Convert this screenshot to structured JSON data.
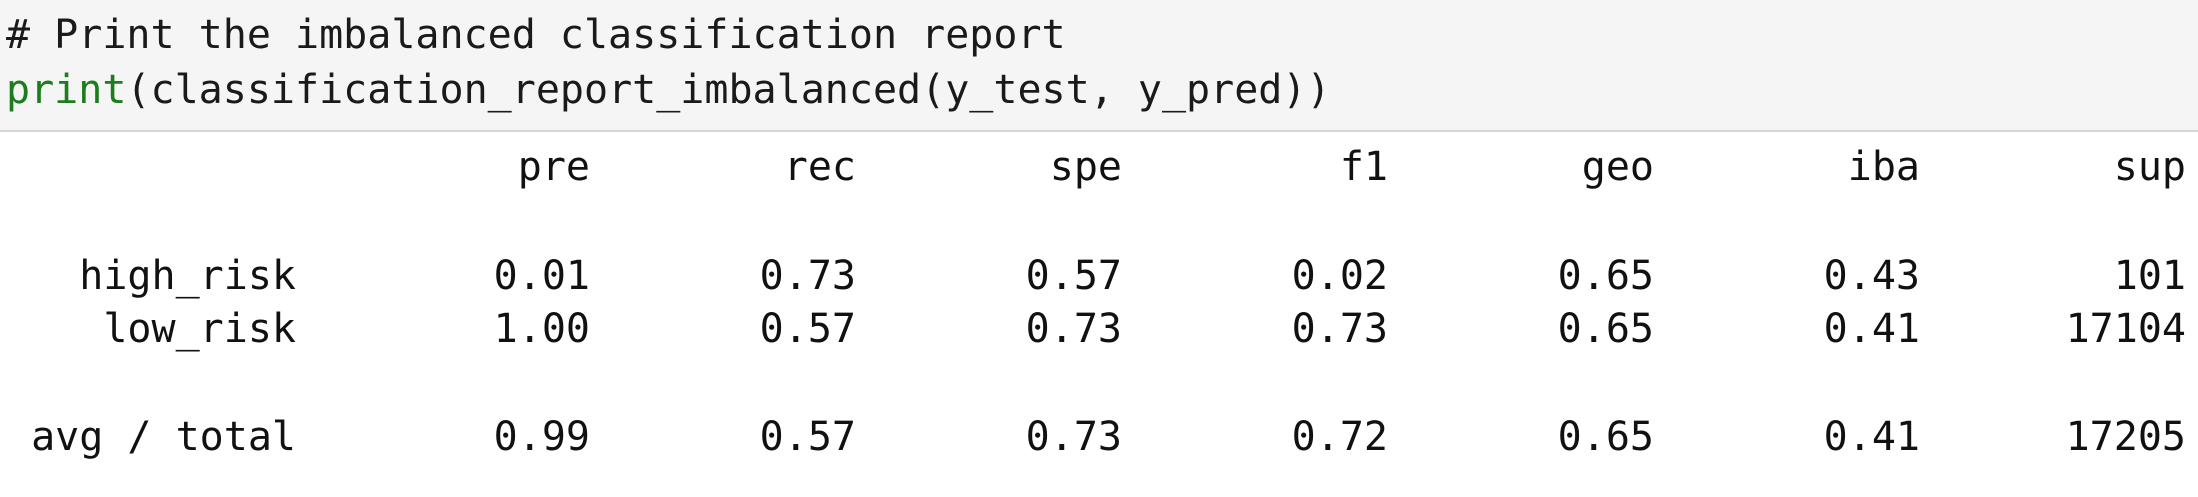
{
  "code": {
    "comment": "# Print the imbalanced classification report",
    "print_kw": "print",
    "call": "(classification_report_imbalanced(y_test, y_pred))"
  },
  "report": {
    "headers": [
      "pre",
      "rec",
      "spe",
      "f1",
      "geo",
      "iba",
      "sup"
    ],
    "rows": [
      {
        "label": "high_risk",
        "values": [
          "0.01",
          "0.73",
          "0.57",
          "0.02",
          "0.65",
          "0.43",
          "101"
        ]
      },
      {
        "label": "low_risk",
        "values": [
          "1.00",
          "0.57",
          "0.73",
          "0.73",
          "0.65",
          "0.41",
          "17104"
        ]
      }
    ],
    "total": {
      "label": "avg / total",
      "values": [
        "0.99",
        "0.57",
        "0.73",
        "0.72",
        "0.65",
        "0.41",
        "17205"
      ]
    }
  }
}
